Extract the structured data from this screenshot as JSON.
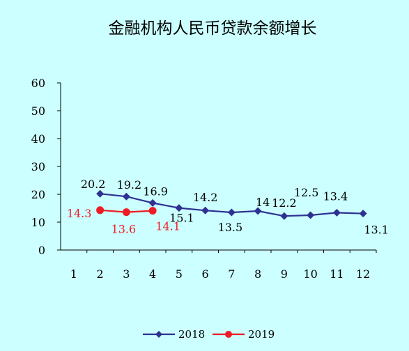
{
  "chart_data": {
    "type": "line",
    "title": "金融机构人民币贷款余额增长",
    "xlabel": "",
    "ylabel": "",
    "categories": [
      "1",
      "2",
      "3",
      "4",
      "5",
      "6",
      "7",
      "8",
      "9",
      "10",
      "11",
      "12"
    ],
    "ylim": [
      0,
      60
    ],
    "yticks": [
      "0",
      "10",
      "20",
      "30",
      "40",
      "50",
      "60"
    ],
    "grid": false,
    "legend_position": "bottom",
    "series": [
      {
        "name": "2018",
        "color": "#2e3192",
        "marker": "diamond",
        "values": [
          null,
          20.2,
          19.2,
          16.9,
          15.1,
          14.2,
          13.5,
          14,
          12.2,
          12.5,
          13.4,
          13.1
        ],
        "labels": [
          "",
          "20.2",
          "19.2",
          "16.9",
          "15.1",
          "14.2",
          "13.5",
          "14",
          "12.2",
          "12.5",
          "13.4",
          "13.1"
        ]
      },
      {
        "name": "2019",
        "color": "#ee1c24",
        "marker": "circle",
        "values": [
          null,
          14.3,
          13.6,
          14.1,
          null,
          null,
          null,
          null,
          null,
          null,
          null,
          null
        ],
        "labels": [
          "",
          "14.3",
          "13.6",
          "14.1",
          "",
          "",
          "",
          "",
          "",
          "",
          "",
          ""
        ]
      }
    ]
  }
}
